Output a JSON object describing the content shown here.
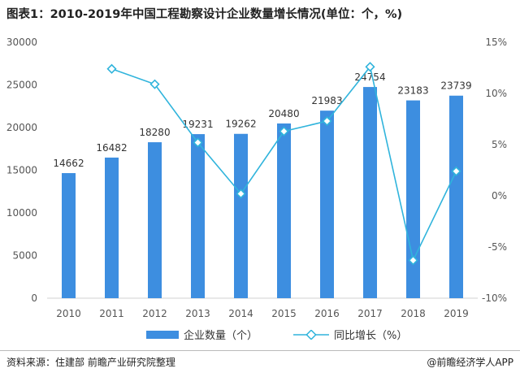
{
  "title": "图表1：2010-2019年中国工程勘察设计企业数量增长情况(单位：个，%)",
  "source": "资料来源：住建部 前瞻产业研究院整理",
  "brand": "@前瞻经济学人APP",
  "colors": {
    "bar": "#3d8ee0",
    "line": "#30b4dc",
    "axis_text": "#555555"
  },
  "chart_data": {
    "type": "bar",
    "categories": [
      "2010",
      "2011",
      "2012",
      "2013",
      "2014",
      "2015",
      "2016",
      "2017",
      "2018",
      "2019"
    ],
    "series": [
      {
        "name": "企业数量（个）",
        "type": "bar",
        "axis": "left",
        "values": [
          14662,
          16482,
          18280,
          19231,
          19262,
          20480,
          21983,
          24754,
          23183,
          23739
        ]
      },
      {
        "name": "同比增长（%）",
        "type": "line",
        "axis": "right",
        "values": [
          null,
          12.4,
          10.9,
          5.2,
          0.2,
          6.3,
          7.3,
          12.6,
          -6.3,
          2.4
        ]
      }
    ],
    "ylim_left": [
      0,
      30000
    ],
    "yticks_left": [
      "0",
      "5000",
      "10000",
      "15000",
      "20000",
      "25000",
      "30000"
    ],
    "ylim_right": [
      -10,
      15
    ],
    "yticks_right": [
      "-10%",
      "-5%",
      "0%",
      "5%",
      "10%",
      "15%"
    ],
    "data_labels": [
      "14662",
      "16482",
      "18280",
      "19231",
      "19262",
      "20480",
      "21983",
      "24754",
      "23183",
      "23739"
    ],
    "legend_position": "bottom",
    "grid": false
  }
}
